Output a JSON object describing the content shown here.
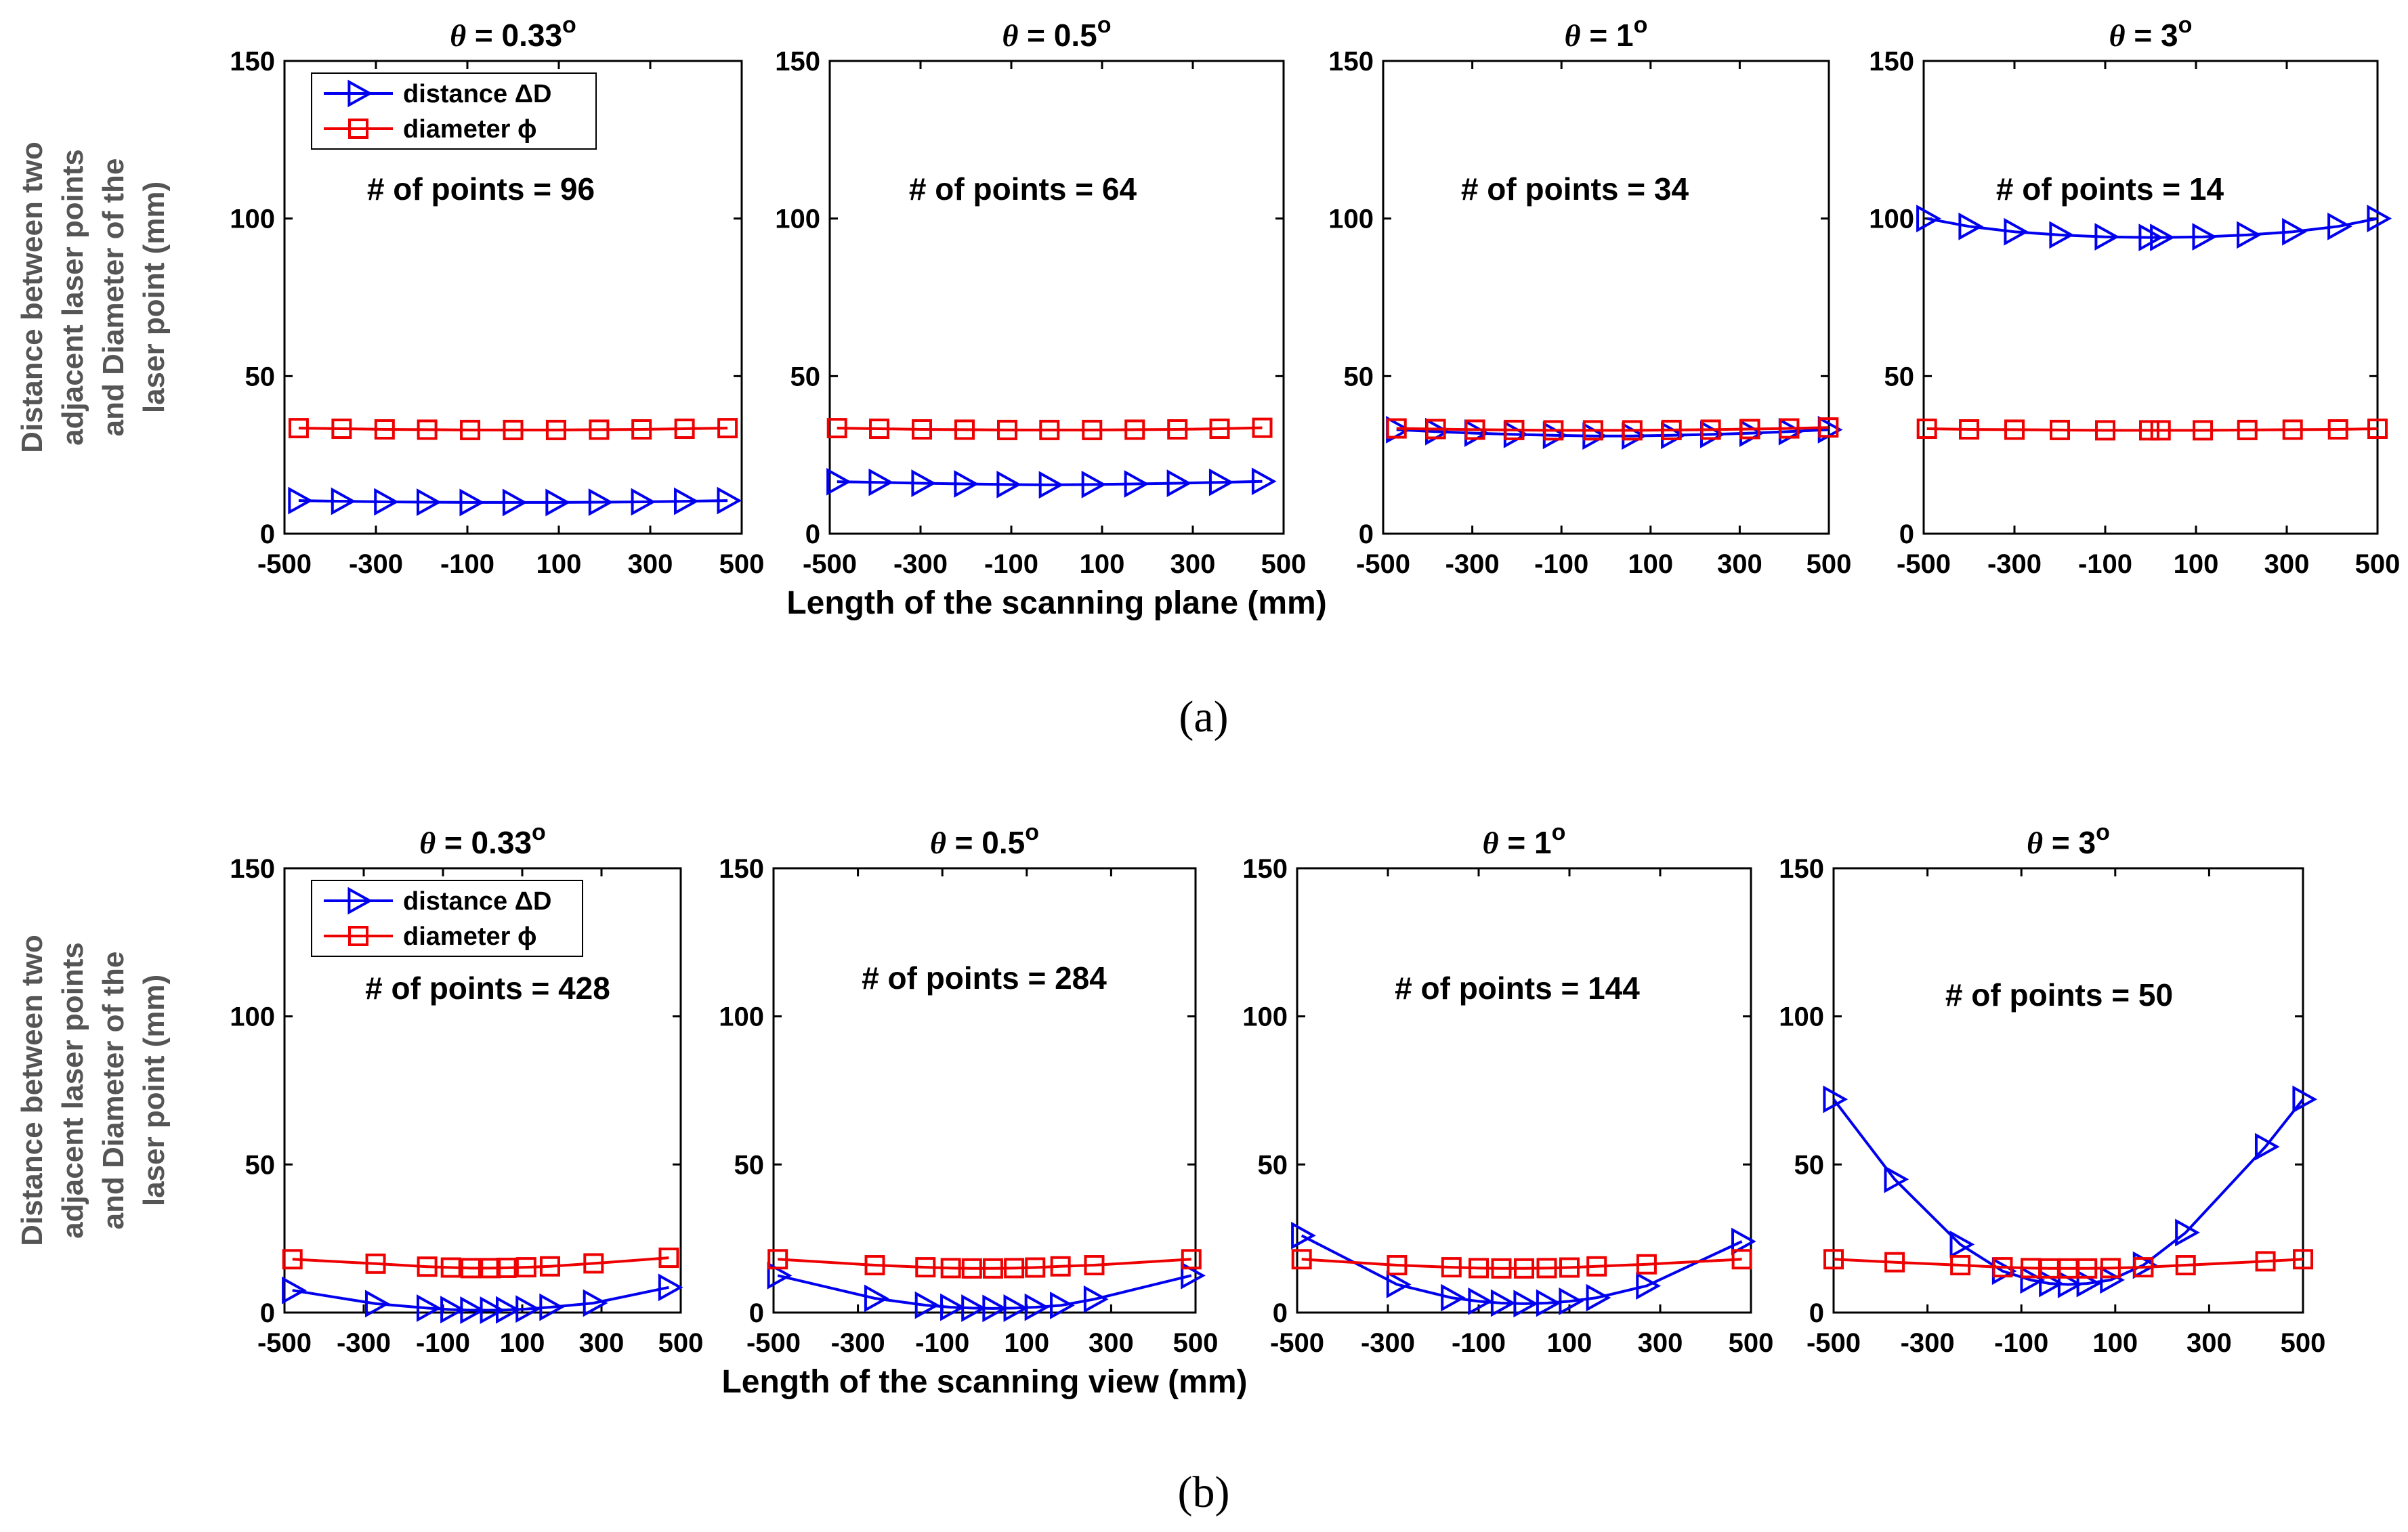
{
  "chart_data": [
    {
      "panel": "a",
      "type": "line",
      "title": "θ = 0.33°",
      "annotation": "# of points =  96",
      "xlabel": "",
      "ylabel": "Distance between two adjacent laser points and Diameter of the laser point (mm)",
      "xlim": [
        -500,
        500
      ],
      "ylim": [
        0,
        150
      ],
      "xticks": [
        "-500",
        "-300",
        "-100",
        "100",
        "300",
        "500"
      ],
      "yticks": [
        "0",
        "50",
        "100",
        "150"
      ],
      "legend": [
        "distance ΔD",
        "diameter ϕ"
      ],
      "series": [
        {
          "name": "distance ΔD",
          "color": "#0000ee",
          "marker": "triangle-right",
          "x": [
            -469,
            -375,
            -281,
            -188,
            -94,
            0,
            94,
            188,
            281,
            375,
            469
          ],
          "y": [
            10.5,
            10.3,
            10.1,
            10.0,
            9.9,
            9.9,
            9.9,
            10.0,
            10.1,
            10.3,
            10.5
          ]
        },
        {
          "name": "diameter ϕ",
          "color": "#ee0000",
          "marker": "square",
          "x": [
            -469,
            -375,
            -281,
            -188,
            -94,
            0,
            94,
            188,
            281,
            375,
            469
          ],
          "y": [
            33.5,
            33.3,
            33.1,
            33.0,
            32.9,
            32.9,
            32.9,
            33.0,
            33.1,
            33.3,
            33.5
          ]
        }
      ]
    },
    {
      "panel": "a",
      "type": "line",
      "title": "θ = 0.5°",
      "annotation": "# of points =  64",
      "xlabel": "Length of the scanning plane (mm)",
      "ylabel": "",
      "xlim": [
        -500,
        500
      ],
      "ylim": [
        0,
        150
      ],
      "xticks": [
        "-500",
        "-300",
        "-100",
        "100",
        "300",
        "500"
      ],
      "yticks": [
        "0",
        "50",
        "100",
        "150"
      ],
      "series": [
        {
          "name": "distance ΔD",
          "color": "#0000ee",
          "marker": "triangle-right",
          "x": [
            -484,
            -391,
            -297,
            -203,
            -109,
            -16,
            78,
            172,
            266,
            359,
            453
          ],
          "y": [
            16.5,
            16.3,
            16.0,
            15.8,
            15.6,
            15.5,
            15.6,
            15.8,
            16.0,
            16.3,
            16.6
          ]
        },
        {
          "name": "diameter ϕ",
          "color": "#ee0000",
          "marker": "square",
          "x": [
            -484,
            -391,
            -297,
            -203,
            -109,
            -16,
            78,
            172,
            266,
            359,
            453
          ],
          "y": [
            33.5,
            33.3,
            33.1,
            33.0,
            32.9,
            32.9,
            32.9,
            33.0,
            33.1,
            33.3,
            33.6
          ]
        }
      ]
    },
    {
      "panel": "a",
      "type": "line",
      "title": "θ = 1°",
      "annotation": "# of points =  34",
      "xlabel": "",
      "ylabel": "",
      "xlim": [
        -500,
        500
      ],
      "ylim": [
        0,
        150
      ],
      "xticks": [
        "-500",
        "-300",
        "-100",
        "100",
        "300",
        "500"
      ],
      "yticks": [
        "0",
        "50",
        "100",
        "150"
      ],
      "series": [
        {
          "name": "distance ΔD",
          "color": "#0000ee",
          "marker": "triangle-right",
          "x": [
            -470,
            -382,
            -294,
            -206,
            -118,
            -29,
            59,
            147,
            235,
            323,
            411,
            499
          ],
          "y": [
            33.0,
            32.4,
            31.9,
            31.5,
            31.2,
            31.0,
            31.0,
            31.2,
            31.5,
            31.9,
            32.4,
            33.0
          ]
        },
        {
          "name": "diameter ϕ",
          "color": "#ee0000",
          "marker": "square",
          "x": [
            -470,
            -382,
            -294,
            -206,
            -118,
            -29,
            59,
            147,
            235,
            323,
            411,
            499
          ],
          "y": [
            33.4,
            33.2,
            33.0,
            32.9,
            32.8,
            32.8,
            32.8,
            32.9,
            33.0,
            33.2,
            33.4,
            33.7
          ]
        }
      ]
    },
    {
      "panel": "a",
      "type": "line",
      "title": "θ = 3°",
      "annotation": "# of points =  14",
      "xlabel": "",
      "ylabel": "",
      "xlim": [
        -500,
        500
      ],
      "ylim": [
        0,
        150
      ],
      "xticks": [
        "-500",
        "-300",
        "-100",
        "100",
        "300",
        "500"
      ],
      "yticks": [
        "0",
        "50",
        "100",
        "150"
      ],
      "series": [
        {
          "name": "distance ΔD",
          "color": "#0000ee",
          "marker": "triangle-right",
          "x": [
            -493,
            -400,
            -300,
            -200,
            -100,
            -3,
            22,
            115,
            213,
            313,
            413,
            500
          ],
          "y": [
            100,
            97.5,
            95.8,
            94.8,
            94.2,
            94.0,
            94.0,
            94.2,
            94.8,
            95.8,
            97.5,
            100
          ]
        },
        {
          "name": "diameter ϕ",
          "color": "#ee0000",
          "marker": "square",
          "x": [
            -493,
            -400,
            -300,
            -200,
            -100,
            -3,
            22,
            115,
            213,
            313,
            413,
            500
          ],
          "y": [
            33.3,
            33.1,
            33.0,
            32.9,
            32.8,
            32.8,
            32.8,
            32.8,
            32.9,
            33.0,
            33.1,
            33.3
          ]
        }
      ]
    },
    {
      "panel": "b",
      "type": "line",
      "title": "θ = 0.33°",
      "annotation": "# of points =  428",
      "xlabel": "",
      "ylabel": "Distance between two adjacent laser points and Diameter of the laser point (mm)",
      "xlim": [
        -500,
        500
      ],
      "ylim": [
        0,
        150
      ],
      "xticks": [
        "-500",
        "-300",
        "-100",
        "100",
        "300",
        "500"
      ],
      "yticks": [
        "0",
        "50",
        "100",
        "150"
      ],
      "legend": [
        "distance ΔD",
        "diameter ϕ"
      ],
      "series": [
        {
          "name": "distance ΔD",
          "color": "#0000ee",
          "marker": "triangle-right",
          "x": [
            -480,
            -270,
            -140,
            -80,
            -30,
            20,
            60,
            110,
            170,
            280,
            470
          ],
          "y": [
            7.5,
            3.0,
            1.5,
            1.0,
            0.8,
            0.8,
            0.9,
            1.2,
            1.8,
            3.2,
            8.5
          ]
        },
        {
          "name": "diameter ϕ",
          "color": "#ee0000",
          "marker": "square",
          "x": [
            -480,
            -270,
            -140,
            -80,
            -30,
            20,
            60,
            110,
            170,
            280,
            470
          ],
          "y": [
            18.0,
            16.5,
            15.5,
            15.2,
            15.0,
            15.0,
            15.1,
            15.3,
            15.6,
            16.6,
            18.5
          ]
        }
      ]
    },
    {
      "panel": "b",
      "type": "line",
      "title": "θ = 0.5°",
      "annotation": "# of points =  284",
      "xlabel": "Length of the scanning view (mm)",
      "ylabel": "",
      "xlim": [
        -500,
        500
      ],
      "ylim": [
        0,
        150
      ],
      "xticks": [
        "-500",
        "-300",
        "-100",
        "100",
        "300",
        "500"
      ],
      "yticks": [
        "0",
        "50",
        "100",
        "150"
      ],
      "series": [
        {
          "name": "distance ΔD",
          "color": "#0000ee",
          "marker": "triangle-right",
          "x": [
            -490,
            -260,
            -140,
            -80,
            -30,
            20,
            70,
            120,
            180,
            260,
            490
          ],
          "y": [
            12.5,
            4.8,
            2.5,
            1.8,
            1.5,
            1.4,
            1.5,
            1.8,
            2.4,
            4.5,
            12.5
          ]
        },
        {
          "name": "diameter ϕ",
          "color": "#ee0000",
          "marker": "square",
          "x": [
            -490,
            -260,
            -140,
            -80,
            -30,
            20,
            70,
            120,
            180,
            260,
            490
          ],
          "y": [
            18.0,
            16.0,
            15.3,
            15.0,
            14.9,
            14.9,
            15.0,
            15.2,
            15.6,
            16.0,
            18.0
          ]
        }
      ]
    },
    {
      "panel": "b",
      "type": "line",
      "title": "θ = 1°",
      "annotation": "# of points =  144",
      "xlabel": "",
      "ylabel": "",
      "xlim": [
        -500,
        500
      ],
      "ylim": [
        0,
        150
      ],
      "xticks": [
        "-500",
        "-300",
        "-100",
        "100",
        "300",
        "500"
      ],
      "yticks": [
        "0",
        "50",
        "100",
        "150"
      ],
      "series": [
        {
          "name": "distance ΔD",
          "color": "#0000ee",
          "marker": "triangle-right",
          "x": [
            -490,
            -280,
            -160,
            -100,
            -50,
            0,
            50,
            100,
            160,
            270,
            480
          ],
          "y": [
            26.0,
            9.5,
            5.0,
            3.8,
            3.2,
            3.0,
            3.2,
            3.8,
            5.0,
            9.0,
            24.0
          ]
        },
        {
          "name": "diameter ϕ",
          "color": "#ee0000",
          "marker": "square",
          "x": [
            -490,
            -280,
            -160,
            -100,
            -50,
            0,
            50,
            100,
            160,
            270,
            480
          ],
          "y": [
            18.0,
            16.0,
            15.3,
            15.0,
            14.9,
            14.9,
            15.0,
            15.2,
            15.6,
            16.3,
            18.0
          ]
        }
      ]
    },
    {
      "panel": "b",
      "type": "line",
      "title": "θ = 3°",
      "annotation": "# of points =  50",
      "xlabel": "",
      "ylabel": "",
      "xlim": [
        -500,
        500
      ],
      "ylim": [
        0,
        150
      ],
      "xticks": [
        "-500",
        "-300",
        "-100",
        "100",
        "300",
        "500"
      ],
      "yticks": [
        "0",
        "50",
        "100",
        "150"
      ],
      "series": [
        {
          "name": "distance ΔD",
          "color": "#0000ee",
          "marker": "triangle-right",
          "x": [
            -500,
            -370,
            -230,
            -140,
            -80,
            -40,
            0,
            40,
            90,
            160,
            250,
            420,
            500
          ],
          "y": [
            72,
            45,
            23,
            14,
            11,
            9.8,
            9.5,
            9.8,
            11,
            16,
            27,
            56,
            72
          ]
        },
        {
          "name": "diameter ϕ",
          "color": "#ee0000",
          "marker": "square",
          "x": [
            -500,
            -370,
            -230,
            -140,
            -80,
            -40,
            0,
            40,
            90,
            160,
            250,
            420,
            500
          ],
          "y": [
            18.0,
            17.0,
            16.0,
            15.3,
            15.0,
            14.9,
            14.9,
            14.9,
            15.0,
            15.3,
            16.0,
            17.3,
            18.0
          ]
        }
      ]
    }
  ],
  "panel_labels": {
    "a": "(a)",
    "b": "(b)"
  },
  "ylabel_lines": [
    "Distance between two",
    "adjacent laser points",
    "and Diameter of the",
    "laser point (mm)"
  ],
  "colors": {
    "distance": "#0000ee",
    "diameter": "#ee0000"
  }
}
